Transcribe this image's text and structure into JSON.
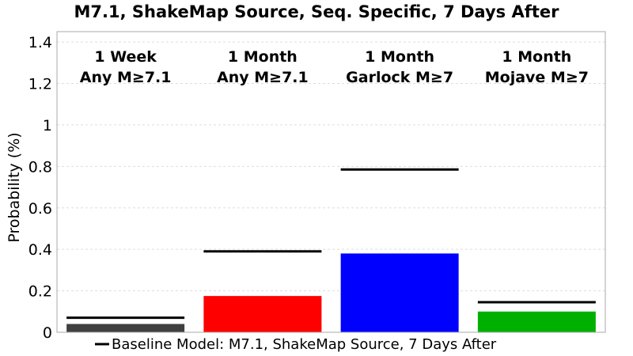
{
  "chart_data": {
    "type": "bar",
    "title": "M7.1, ShakeMap Source, Seq. Specific, 7 Days After",
    "ylabel": "Probability (%)",
    "ylim": [
      0,
      1.45
    ],
    "yticks": [
      "0",
      "0.2",
      "0.4",
      "0.6",
      "0.8",
      "1",
      "1.2",
      "1.4"
    ],
    "grid": true,
    "categories": [
      {
        "line1": "1 Week",
        "line2": "Any M≥7.1",
        "color": "#404040"
      },
      {
        "line1": "1 Month",
        "line2": "Any M≥7.1",
        "color": "#ff0000"
      },
      {
        "line1": "1 Month",
        "line2": "Garlock M≥7",
        "color": "#0000ff"
      },
      {
        "line1": "1 Month",
        "line2": "Mojave M≥7",
        "color": "#00b000"
      }
    ],
    "values": [
      0.04,
      0.175,
      0.38,
      0.1
    ],
    "baseline": {
      "name": "Baseline Model: M7.1, ShakeMap Source, 7 Days After",
      "values": [
        0.07,
        0.39,
        0.785,
        0.145
      ],
      "color": "#000000"
    },
    "legend_position": "bottom"
  }
}
